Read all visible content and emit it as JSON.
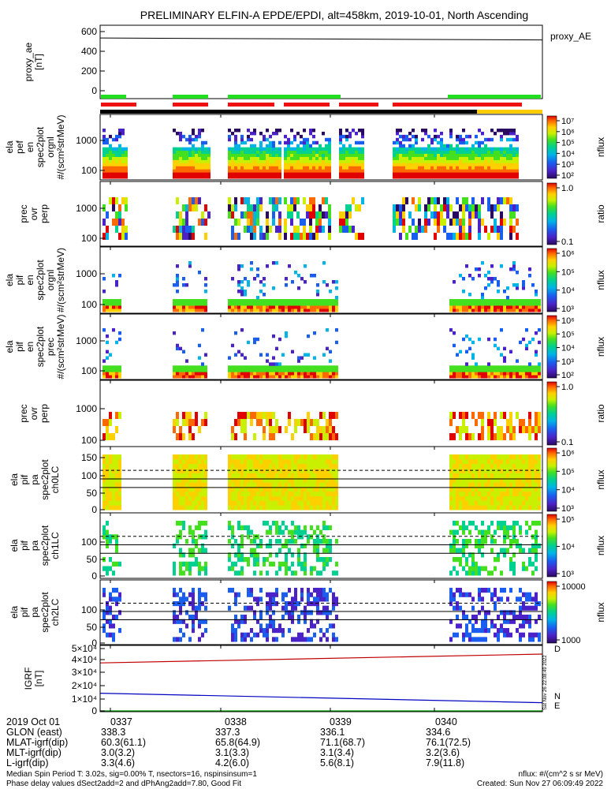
{
  "title": "PRELIMINARY ELFIN-A EPDE/EPDI, alt=458km, 2019-10-01, North Ascending",
  "panels": [
    {
      "id": "proxy_ae",
      "ylabel": [
        "proxy_ae",
        "[nT]"
      ],
      "yticks": [
        "600",
        "400",
        "200",
        "0"
      ],
      "right_label": "proxy_AE"
    },
    {
      "id": "ela_pef_en_orgnl",
      "ylabel": [
        "ela",
        "pef",
        "en",
        "spec2plot",
        "orgnl",
        "#/(scm²strMeV)"
      ],
      "yticks": [
        "1000",
        "100"
      ],
      "cb_ticks": [
        "10⁷",
        "10⁶",
        "10⁵",
        "10⁴",
        "10³",
        "10²"
      ],
      "cb_label": "nflux"
    },
    {
      "id": "prec_ovr_perp_e",
      "ylabel": [
        "prec",
        "ovr",
        "perp"
      ],
      "yticks": [
        "1000",
        "100"
      ],
      "cb_ticks": [
        "1.0",
        "0.1"
      ],
      "cb_label": "ratio"
    },
    {
      "id": "ela_pif_en_orgnl",
      "ylabel": [
        "ela",
        "pif",
        "en",
        "spec2plot",
        "orgnl",
        "#/(scm²strMeV)"
      ],
      "yticks": [
        "1000",
        "100"
      ],
      "cb_ticks": [
        "10⁶",
        "10⁵",
        "10⁴",
        "10³"
      ],
      "cb_label": "nflux"
    },
    {
      "id": "ela_pif_en_prec",
      "ylabel": [
        "ela",
        "pif",
        "en",
        "spec2plot",
        "prec",
        "#/(scm²strMeV)"
      ],
      "yticks": [
        "1000",
        "100"
      ],
      "cb_ticks": [
        "10⁶",
        "10⁵",
        "10⁴",
        "10³",
        "10²"
      ],
      "cb_label": "nflux"
    },
    {
      "id": "prec_ovr_perp_i",
      "ylabel": [
        "prec",
        "ovr",
        "perp"
      ],
      "yticks": [
        "1000",
        "100"
      ],
      "cb_ticks": [
        "1.0",
        "0.1"
      ],
      "cb_label": "ratio"
    },
    {
      "id": "ela_pif_pa_ch0LC",
      "ylabel": [
        "ela",
        "pif",
        "pa",
        "spec2plot",
        "ch0LC"
      ],
      "yticks": [
        "150",
        "100",
        "50",
        "0"
      ],
      "cb_ticks": [
        "10⁶",
        "10⁵",
        "10⁴",
        "10³"
      ],
      "cb_label": "nflux"
    },
    {
      "id": "ela_pif_pa_ch1LC",
      "ylabel": [
        "ela",
        "pif",
        "pa",
        "spec2plot",
        "ch1LC"
      ],
      "yticks": [
        "100",
        "50",
        "0"
      ],
      "cb_ticks": [
        "10⁵",
        "10⁴",
        "10³"
      ],
      "cb_label": "nflux"
    },
    {
      "id": "ela_pif_pa_ch2LC",
      "ylabel": [
        "ela",
        "pif",
        "pa",
        "spec2plot",
        "ch2LC"
      ],
      "yticks": [
        "100",
        "50",
        "0"
      ],
      "cb_ticks": [
        "10000",
        "1000"
      ],
      "cb_label": "nflux"
    },
    {
      "id": "igrf",
      "ylabel": [
        "IGRF",
        "[nT]"
      ],
      "yticks": [
        "5×10⁴",
        "4×10⁴",
        "3×10⁴",
        "2×10⁴",
        "1×10⁴",
        "0"
      ],
      "legend": [
        "D",
        "N",
        "E"
      ],
      "legend_colors": [
        "#d00000",
        "#0000d0",
        "#00b000"
      ]
    }
  ],
  "chart_data": {
    "type": "heatmap",
    "x_time_labels": [
      "0337",
      "0338",
      "0339",
      "0340"
    ],
    "proxy_ae_values": [
      535,
      515
    ],
    "igrf": {
      "series": [
        {
          "name": "D",
          "start": 38000,
          "end": 45000,
          "color": "#c00000"
        },
        {
          "name": "N",
          "start": 14000,
          "end": 6500,
          "color": "#0000c0"
        },
        {
          "name": "E",
          "start": 0,
          "end": 0,
          "color": "#00a000"
        }
      ],
      "ylim": [
        0,
        50000
      ]
    },
    "pa_reference_lines": {
      "dashed": 115,
      "solid": [
        90,
        65
      ]
    }
  },
  "time_table": [
    {
      "label": "2019 Oct 01",
      "values": [
        "0337",
        "0338",
        "0339",
        "0340"
      ]
    },
    {
      "label": "GLON (east)",
      "values": [
        "338.3",
        "337.3",
        "336.1",
        "334.6"
      ]
    },
    {
      "label": "MLAT-igrf(dip)",
      "values": [
        "60.3(61.1)",
        "65.8(64.9)",
        "71.1(68.7)",
        "76.1(72.5)"
      ]
    },
    {
      "label": "MLT-igrf(dip)",
      "values": [
        "3.0(3.2)",
        "3.1(3.3)",
        "3.1(3.4)",
        "3.2(3.6)"
      ]
    },
    {
      "label": "L-igrf(dip)",
      "values": [
        "3.3(4.6)",
        "4.2(6.0)",
        "5.6(8.1)",
        "7.9(11.8)"
      ]
    }
  ],
  "footer": {
    "line1_left": "Median Spin Period T: 3.02s, sig=0.00% T, nsectors=16, nspinsinsum=1",
    "line2_left": "Phase delay values dSect2add=2 and dPhAng2add=7.80, Good Fit",
    "line1_right": "nflux: #/(cm^2 s sr MeV)",
    "line2_right": "Created: Sun Nov 27 06:09:49 2022",
    "side_stamp": "Sat Nov 26 22:08:49 2022"
  },
  "colors": {
    "green_bar": "#22dd22",
    "red_bar": "#ee1111",
    "yellow_bar": "#ffcc00"
  }
}
